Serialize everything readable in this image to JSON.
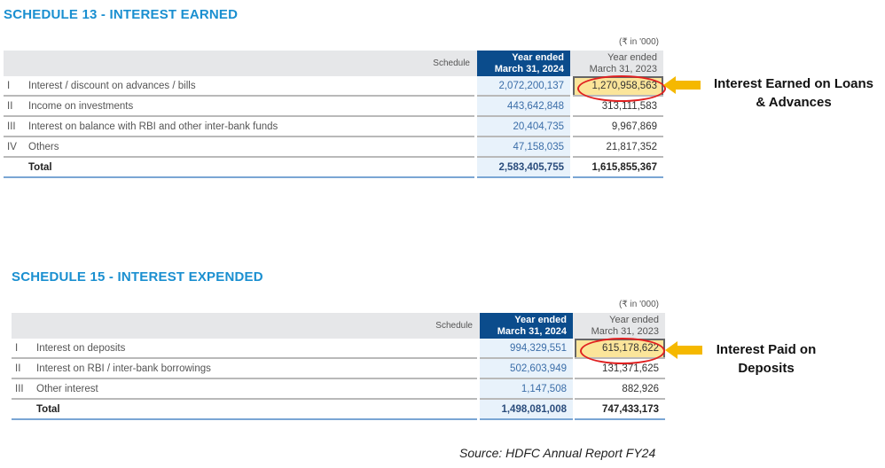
{
  "schedule13": {
    "title": "SCHEDULE 13 - INTEREST EARNED",
    "unit": "(₹ in '000)",
    "schedule_label": "Schedule",
    "col_current": [
      "Year ended",
      "March 31, 2024"
    ],
    "col_previous": [
      "Year ended",
      "March 31, 2023"
    ],
    "rows": [
      {
        "num": "I",
        "label": "Interest / discount on advances / bills",
        "current": "2,072,200,137",
        "previous": "1,270,958,563"
      },
      {
        "num": "II",
        "label": "Income on investments",
        "current": "443,642,848",
        "previous": "313,111,583"
      },
      {
        "num": "III",
        "label": "Interest on balance with RBI and other inter-bank funds",
        "current": "20,404,735",
        "previous": "9,967,869"
      },
      {
        "num": "IV",
        "label": "Others",
        "current": "47,158,035",
        "previous": "21,817,352"
      }
    ],
    "total": {
      "label": "Total",
      "current": "2,583,405,755",
      "previous": "1,615,855,367"
    },
    "annotation": [
      "Interest Earned on Loans",
      "& Advances"
    ]
  },
  "schedule15": {
    "title": "SCHEDULE 15 - INTEREST EXPENDED",
    "unit": "(₹ in '000)",
    "schedule_label": "Schedule",
    "col_current": [
      "Year ended",
      "March 31, 2024"
    ],
    "col_previous": [
      "Year ended",
      "March 31, 2023"
    ],
    "rows": [
      {
        "num": "I",
        "label": "Interest on deposits",
        "current": "994,329,551",
        "previous": "615,178,622"
      },
      {
        "num": "II",
        "label": "Interest on RBI / inter-bank borrowings",
        "current": "502,603,949",
        "previous": "131,371,625"
      },
      {
        "num": "III",
        "label": "Other interest",
        "current": "1,147,508",
        "previous": "882,926"
      }
    ],
    "total": {
      "label": "Total",
      "current": "1,498,081,008",
      "previous": "747,433,173"
    },
    "annotation": [
      "Interest Paid on",
      "Deposits"
    ]
  },
  "source": "Source: HDFC Annual Report FY24",
  "colors": {
    "title": "#1a8fd0",
    "header_current": "#0b4c8c",
    "highlight": "#fbe59a",
    "circle": "#e02020",
    "arrow": "#f5b800"
  }
}
